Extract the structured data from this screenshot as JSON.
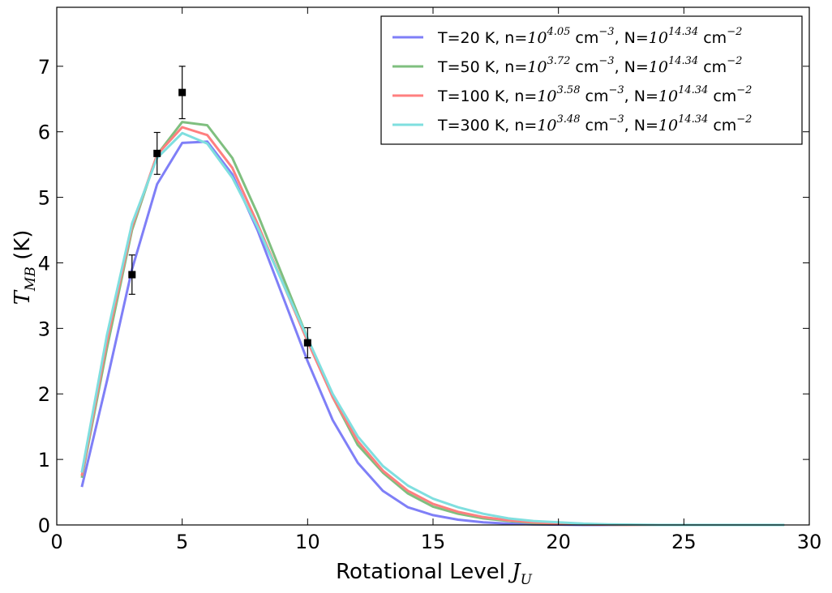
{
  "chart_data": {
    "type": "line",
    "xlabel_prefix": "Rotational Level ",
    "xlabel_symbol": "J",
    "xlabel_sub": "U",
    "ylabel_symbol": "T",
    "ylabel_sub": "MB",
    "ylabel_suffix": " (K)",
    "xlim": [
      0,
      30
    ],
    "ylim": [
      0,
      7.9
    ],
    "xticks": [
      0,
      5,
      10,
      15,
      20,
      25,
      30
    ],
    "yticks": [
      0,
      1,
      2,
      3,
      4,
      5,
      6,
      7
    ],
    "legend_position": "top-right",
    "x": [
      1,
      2,
      3,
      4,
      5,
      6,
      7,
      8,
      9,
      10,
      11,
      12,
      13,
      14,
      15,
      16,
      17,
      18,
      19,
      20,
      21,
      22,
      23,
      24,
      25,
      26,
      27,
      28,
      29
    ],
    "series": [
      {
        "name": "T=20 K, n=10^4.05 cm^-3, N=10^14.34 cm^-2",
        "color": "#7f7ff7",
        "legend": {
          "t": "T=20 K, n=",
          "n_exp": "4.05",
          "N_exp": "14.34"
        },
        "values": [
          0.58,
          2.2,
          3.9,
          5.2,
          5.83,
          5.85,
          5.35,
          4.5,
          3.5,
          2.5,
          1.6,
          0.95,
          0.52,
          0.27,
          0.15,
          0.08,
          0.04,
          0.02,
          0.01,
          0.005,
          0,
          0,
          0,
          0,
          0,
          0,
          0,
          0,
          0
        ]
      },
      {
        "name": "T=50 K, n=10^3.72 cm^-3, N=10^14.34 cm^-2",
        "color": "#7fbf7f",
        "legend": {
          "t": "T=50 K, n=",
          "n_exp": "3.72",
          "N_exp": "14.34"
        },
        "values": [
          0.72,
          2.7,
          4.5,
          5.65,
          6.15,
          6.1,
          5.6,
          4.75,
          3.8,
          2.85,
          1.95,
          1.22,
          0.8,
          0.48,
          0.28,
          0.17,
          0.1,
          0.06,
          0.03,
          0.02,
          0.01,
          0.005,
          0,
          0,
          0,
          0,
          0,
          0,
          0
        ]
      },
      {
        "name": "T=100 K, n=10^3.58 cm^-3, N=10^14.34 cm^-2",
        "color": "#ff7f7f",
        "legend": {
          "t": "T=100 K, n=",
          "n_exp": "3.58",
          "N_exp": "14.34"
        },
        "values": [
          0.75,
          2.8,
          4.55,
          5.65,
          6.07,
          5.95,
          5.45,
          4.6,
          3.7,
          2.8,
          1.95,
          1.28,
          0.83,
          0.52,
          0.32,
          0.2,
          0.12,
          0.07,
          0.04,
          0.02,
          0.01,
          0.005,
          0,
          0,
          0,
          0,
          0,
          0,
          0
        ]
      },
      {
        "name": "T=300 K, n=10^3.48 cm^-3, N=10^14.34 cm^-2",
        "color": "#7fdfdf",
        "legend": {
          "t": "T=300 K, n=",
          "n_exp": "3.48",
          "N_exp": "14.34"
        },
        "values": [
          0.8,
          2.9,
          4.6,
          5.6,
          5.98,
          5.82,
          5.3,
          4.55,
          3.7,
          2.85,
          2.0,
          1.35,
          0.9,
          0.6,
          0.4,
          0.27,
          0.17,
          0.1,
          0.06,
          0.04,
          0.02,
          0.01,
          0.005,
          0,
          0,
          0,
          0,
          0,
          0
        ]
      }
    ],
    "observations": {
      "x": [
        3,
        4,
        5,
        10
      ],
      "y": [
        3.82,
        5.67,
        6.6,
        2.78
      ],
      "yerr": [
        0.3,
        0.32,
        0.4,
        0.23
      ],
      "color": "#000000"
    }
  }
}
